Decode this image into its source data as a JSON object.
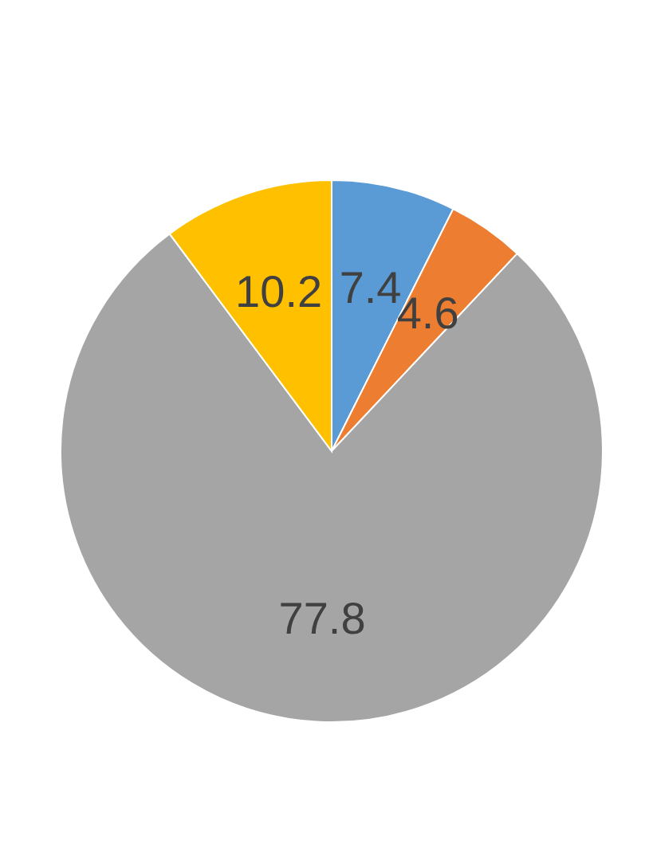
{
  "chart_data": {
    "type": "pie",
    "categories": [
      null,
      null,
      null,
      null
    ],
    "values": [
      7.4,
      4.6,
      77.8,
      10.2
    ],
    "colors": [
      "#5b9bd5",
      "#ed7d31",
      "#a5a5a5",
      "#ffc000"
    ],
    "data_labels": true
  }
}
